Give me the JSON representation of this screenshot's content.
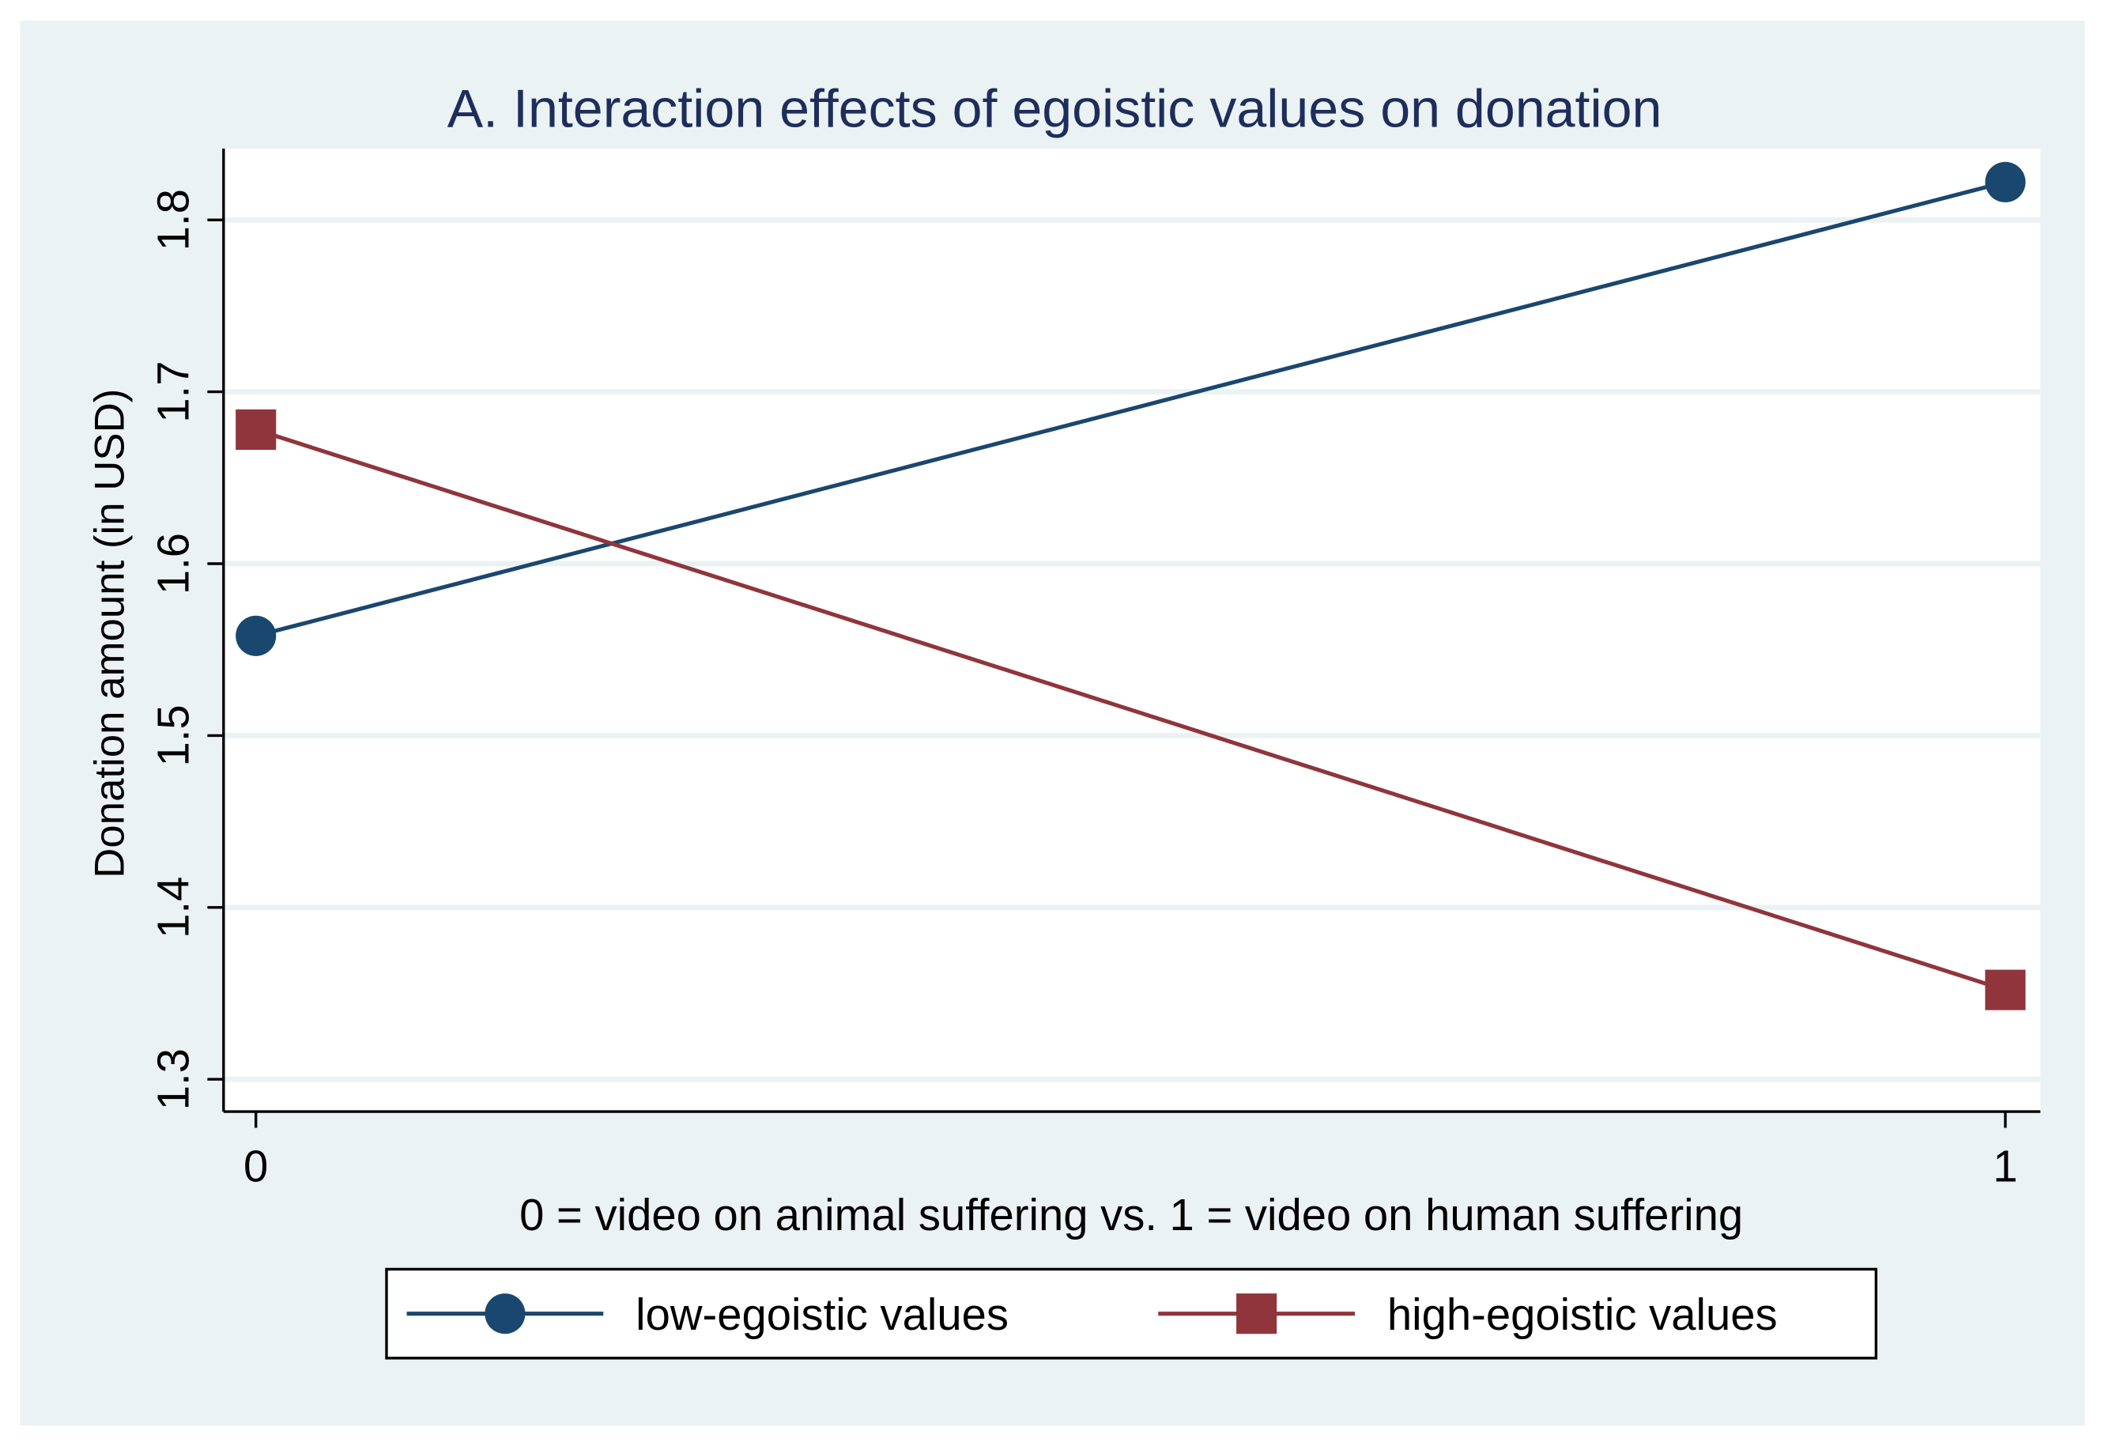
{
  "chart_data": {
    "type": "line",
    "title": "A. Interaction effects of egoistic values on donation",
    "xlabel": "0 = video on animal suffering vs. 1 = video on human suffering",
    "ylabel": "Donation amount (in USD)",
    "x": [
      0,
      1
    ],
    "x_ticks": [
      "0",
      "1"
    ],
    "y_ticks": [
      "1.3",
      "1.4",
      "1.5",
      "1.6",
      "1.7",
      "1.8"
    ],
    "ylim": [
      1.3,
      1.84
    ],
    "grid": true,
    "legend_position": "bottom",
    "series": [
      {
        "name": "low-egoistic values",
        "values": [
          1.558,
          1.822
        ],
        "marker": "circle",
        "color": "#1a476f"
      },
      {
        "name": "high-egoistic values",
        "values": [
          1.678,
          1.352
        ],
        "marker": "square",
        "color": "#90353b"
      }
    ]
  },
  "colors": {
    "background": "#eaf2f3",
    "plot": "#ffffff",
    "text": "#1e2d5c"
  }
}
